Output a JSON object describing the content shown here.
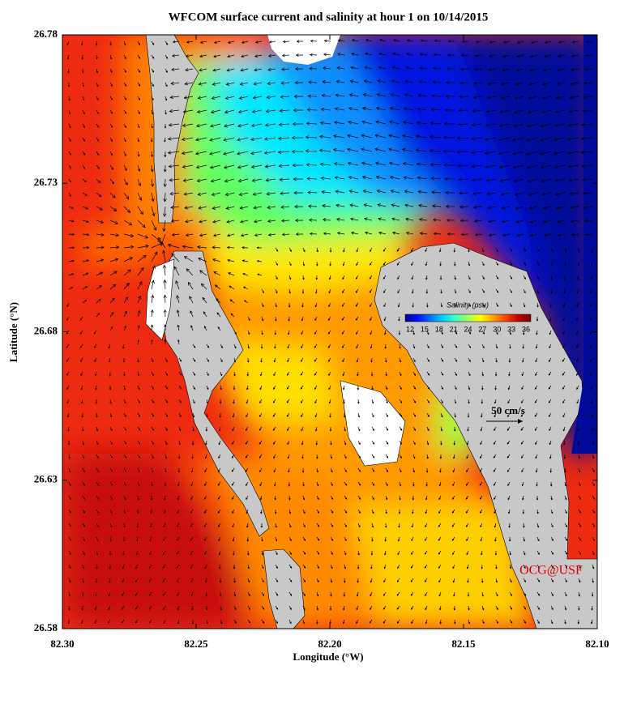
{
  "chart_data": {
    "type": "map",
    "title": "WFCOM surface current and salinity at hour 1 on 10/14/2015",
    "x_label": "Longitude (°W)",
    "y_label": "Latitude (°N)",
    "xlim": [
      82.3,
      82.1
    ],
    "xticks": [
      {
        "value": 82.3,
        "label": "82.30"
      },
      {
        "value": 82.25,
        "label": "82.25"
      },
      {
        "value": 82.2,
        "label": "82.20"
      },
      {
        "value": 82.15,
        "label": "82.15"
      },
      {
        "value": 82.1,
        "label": "82.10"
      }
    ],
    "ylim": [
      26.58,
      26.78
    ],
    "yticks": [
      26.58,
      26.63,
      26.68,
      26.73,
      26.78
    ],
    "colorbar": {
      "title": "Salinity (psu)",
      "ticks": [
        12,
        15,
        18,
        21,
        24,
        27,
        30,
        33,
        36
      ],
      "colors": [
        "#00008f",
        "#0010ff",
        "#0070ff",
        "#00d0ff",
        "#40ffbf",
        "#a0ff60",
        "#ffff00",
        "#ffa000",
        "#ff4000",
        "#c00000",
        "#800000"
      ]
    },
    "vector_scale": "50 cm/s",
    "credit": "OCG@USF"
  }
}
